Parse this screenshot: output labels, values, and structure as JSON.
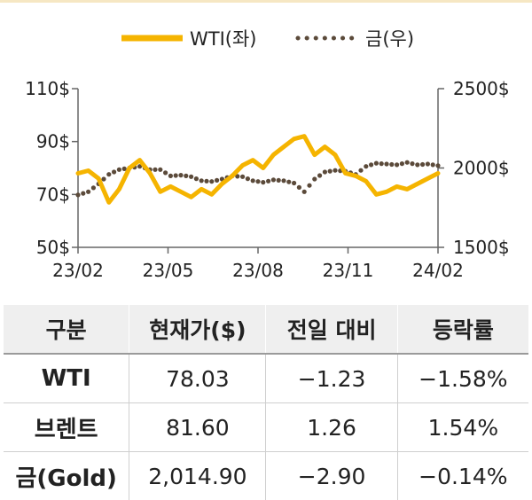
{
  "chart_data": {
    "type": "line",
    "title": "",
    "xlabel": "",
    "ylabel": "",
    "x_ticks": [
      "23/02",
      "23/05",
      "23/08",
      "23/11",
      "24/02"
    ],
    "y_left": {
      "ticks": [
        "50$",
        "70$",
        "90$",
        "110$"
      ],
      "range": [
        50,
        110
      ]
    },
    "y_right": {
      "ticks": [
        "1500$",
        "2000$",
        "2500$"
      ],
      "range": [
        1500,
        2500
      ]
    },
    "legend_position": "top",
    "grid": false,
    "series": [
      {
        "name": "WTI(좌)",
        "axis": "left",
        "color": "#f5b400",
        "style": "solid",
        "x": [
          "23/02",
          "23/02",
          "23/03",
          "23/03",
          "23/03",
          "23/04",
          "23/04",
          "23/04",
          "23/05",
          "23/05",
          "23/05",
          "23/06",
          "23/06",
          "23/06",
          "23/07",
          "23/07",
          "23/07",
          "23/08",
          "23/08",
          "23/08",
          "23/09",
          "23/09",
          "23/09",
          "23/10",
          "23/10",
          "23/10",
          "23/11",
          "23/11",
          "23/11",
          "23/12",
          "23/12",
          "23/12",
          "24/01",
          "24/01",
          "24/01",
          "24/02"
        ],
        "values": [
          78,
          79,
          76,
          67,
          72,
          80,
          83,
          78,
          71,
          73,
          71,
          69,
          72,
          70,
          74,
          77,
          81,
          83,
          80,
          85,
          88,
          91,
          92,
          85,
          88,
          85,
          78,
          77,
          75,
          70,
          71,
          73,
          72,
          74,
          76,
          78
        ]
      },
      {
        "name": "금(우)",
        "axis": "right",
        "color": "#5b4a3a",
        "style": "dotted",
        "x": [
          "23/02",
          "23/02",
          "23/03",
          "23/03",
          "23/03",
          "23/04",
          "23/04",
          "23/04",
          "23/05",
          "23/05",
          "23/05",
          "23/06",
          "23/06",
          "23/06",
          "23/07",
          "23/07",
          "23/07",
          "23/08",
          "23/08",
          "23/08",
          "23/09",
          "23/09",
          "23/09",
          "23/10",
          "23/10",
          "23/10",
          "23/11",
          "23/11",
          "23/11",
          "23/12",
          "23/12",
          "23/12",
          "24/01",
          "24/01",
          "24/01",
          "24/02"
        ],
        "values": [
          1830,
          1850,
          1900,
          1960,
          1990,
          2000,
          2010,
          1990,
          1990,
          1950,
          1955,
          1945,
          1920,
          1915,
          1930,
          1950,
          1945,
          1920,
          1910,
          1925,
          1920,
          1905,
          1850,
          1930,
          1975,
          1985,
          1980,
          1960,
          2010,
          2030,
          2025,
          2020,
          2035,
          2020,
          2025,
          2015
        ]
      }
    ]
  },
  "table": {
    "headers": [
      "구분",
      "현재가($)",
      "전일 대비",
      "등락률"
    ],
    "rows": [
      [
        "WTI",
        "78.03",
        "−1.23",
        "−1.58%"
      ],
      [
        "브렌트",
        "81.60",
        "1.26",
        "1.54%"
      ],
      [
        "금(Gold)",
        "2,014.90",
        "−2.90",
        "−0.14%"
      ]
    ]
  }
}
